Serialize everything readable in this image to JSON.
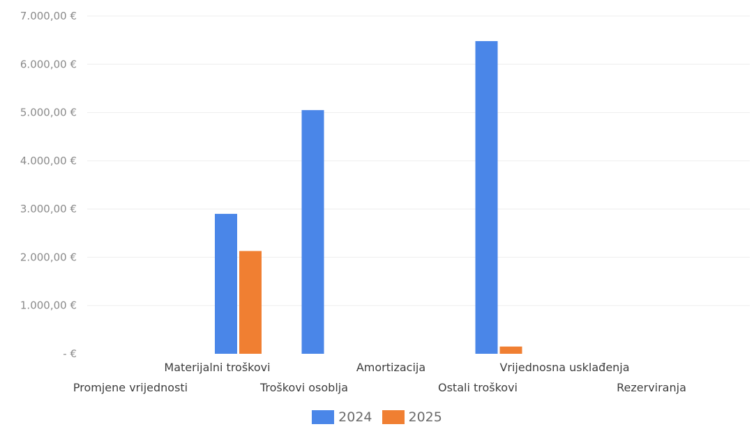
{
  "chart_data": {
    "type": "bar",
    "title": "",
    "xlabel": "",
    "ylabel": "",
    "ylim": [
      0,
      7000
    ],
    "grid": true,
    "legend_position": "bottom",
    "y_tick_labels": [
      "-   €",
      "1.000,00 €",
      "2.000,00 €",
      "3.000,00 €",
      "4.000,00 €",
      "5.000,00 €",
      "6.000,00 €",
      "7.000,00 €"
    ],
    "y_tick_values": [
      0,
      1000,
      2000,
      3000,
      4000,
      5000,
      6000,
      7000
    ],
    "categories": [
      "Promjene vrijednosti",
      "Materijalni troškovi",
      "Troškovi osoblja",
      "Amortizacija",
      "Ostali troškovi",
      "Vrijednosna usklađenja",
      "Rezerviranja"
    ],
    "series": [
      {
        "name": "2024",
        "color": "#4a86e8",
        "values": [
          0,
          2900,
          5050,
          0,
          6480,
          0,
          0
        ]
      },
      {
        "name": "2025",
        "color": "#f07f32",
        "values": [
          0,
          2130,
          0,
          0,
          150,
          0,
          0
        ]
      }
    ]
  }
}
